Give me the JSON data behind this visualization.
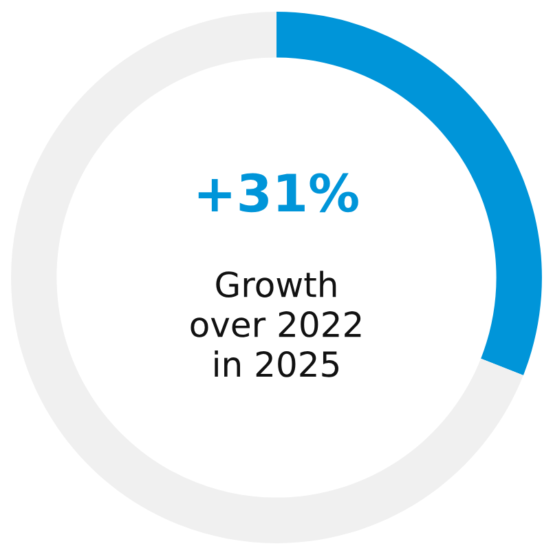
{
  "chart_data": {
    "type": "donut",
    "categories": [
      null,
      null
    ],
    "values": [
      31,
      69
    ],
    "colors": [
      "#0095d9",
      "#f0f0f0"
    ],
    "annotations": [
      "+31%",
      "Growth\nover 2022\nin 2025"
    ]
  }
}
